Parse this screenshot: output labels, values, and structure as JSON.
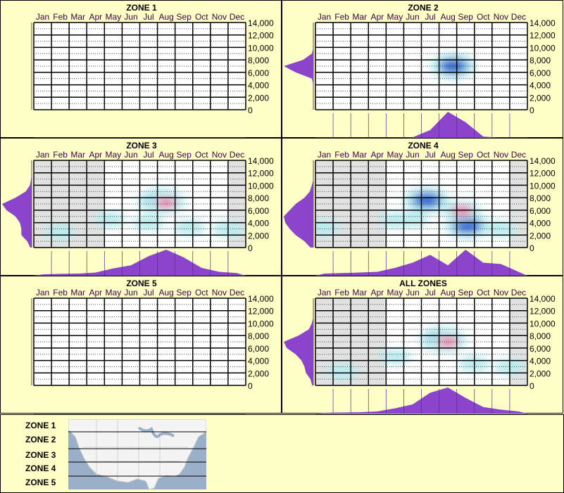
{
  "axis": {
    "months": [
      "Jan",
      "Feb",
      "Mar",
      "Apr",
      "May",
      "Jun",
      "Jul",
      "Aug",
      "Sep",
      "Oct",
      "Nov",
      "Dec"
    ],
    "y_ticks": [
      "14,000",
      "12,000",
      "10,000",
      "8,000",
      "6,000",
      "4,000",
      "2,000",
      "0"
    ],
    "ylim": [
      0,
      14000
    ]
  },
  "colors": {
    "background": "#ffffc8",
    "no_data": "#e2e2e2",
    "low": "#b8ecf0",
    "mid": "#0a5ad0",
    "high": "#ff2a8a",
    "marginal": "#8b44cc"
  },
  "chart_data": [
    {
      "type": "heatmap",
      "title": "ZONE 1",
      "no_data_months": [],
      "hotspots": [],
      "elev_density": [],
      "month_density": []
    },
    {
      "type": "heatmap",
      "title": "ZONE 2",
      "no_data_months": [],
      "hotspots": [
        {
          "month": 7.8,
          "elev": 7000,
          "level": "mid"
        },
        {
          "month": 7.5,
          "elev": 6500,
          "level": "low"
        }
      ],
      "elev_density": [
        0,
        0,
        0,
        0,
        0,
        0.05,
        0.6,
        1,
        0.35,
        0.05,
        0,
        0,
        0,
        0,
        0
      ],
      "month_density": [
        0,
        0,
        0,
        0,
        0,
        0.02,
        0.3,
        1,
        0.6,
        0.05,
        0,
        0
      ]
    },
    {
      "type": "heatmap",
      "title": "ZONE 3",
      "no_data_months": [
        "Jan",
        "Feb",
        "Mar",
        "Apr",
        "Dec"
      ],
      "hotspots": [
        {
          "month": 7.5,
          "elev": 7200,
          "level": "high"
        },
        {
          "month": 7.2,
          "elev": 7500,
          "level": "mid"
        },
        {
          "month": 4.3,
          "elev": 4500,
          "level": "low"
        },
        {
          "month": 8.8,
          "elev": 3200,
          "level": "low"
        },
        {
          "month": 11,
          "elev": 3000,
          "level": "low"
        },
        {
          "month": 1.5,
          "elev": 2500,
          "level": "low"
        },
        {
          "month": 6.5,
          "elev": 4000,
          "level": "low"
        }
      ],
      "elev_density": [
        0.05,
        0.15,
        0.35,
        0.35,
        0.4,
        0.55,
        0.85,
        1,
        0.55,
        0.2,
        0.06,
        0.02,
        0,
        0,
        0
      ],
      "month_density": [
        0.05,
        0.07,
        0.08,
        0.12,
        0.28,
        0.4,
        0.75,
        1,
        0.7,
        0.3,
        0.15,
        0.1
      ]
    },
    {
      "type": "heatmap",
      "title": "ZONE 4",
      "no_data_months": [
        "Jan",
        "Feb",
        "Mar",
        "Apr",
        "Dec"
      ],
      "hotspots": [
        {
          "month": 6.3,
          "elev": 7600,
          "level": "mid"
        },
        {
          "month": 8.3,
          "elev": 5900,
          "level": "high"
        },
        {
          "month": 8.6,
          "elev": 3500,
          "level": "mid"
        },
        {
          "month": 4.5,
          "elev": 4400,
          "level": "low"
        },
        {
          "month": 5.5,
          "elev": 4500,
          "level": "low"
        },
        {
          "month": 10.5,
          "elev": 3000,
          "level": "low"
        },
        {
          "month": 0.5,
          "elev": 3200,
          "level": "low"
        }
      ],
      "elev_density": [
        0.1,
        0.3,
        0.6,
        0.8,
        0.95,
        1,
        0.8,
        0.6,
        0.3,
        0.12,
        0.05,
        0,
        0,
        0,
        0
      ],
      "month_density": [
        0.08,
        0.1,
        0.12,
        0.15,
        0.3,
        0.5,
        0.8,
        0.4,
        1,
        0.5,
        0.45,
        0.15
      ]
    },
    {
      "type": "heatmap",
      "title": "ZONE 5",
      "no_data_months": [],
      "hotspots": [],
      "elev_density": [],
      "month_density": []
    },
    {
      "type": "heatmap",
      "title": "ALL ZONES",
      "no_data_months": [
        "Jan",
        "Feb",
        "Mar",
        "Apr",
        "Dec"
      ],
      "hotspots": [
        {
          "month": 7.5,
          "elev": 7000,
          "level": "high"
        },
        {
          "month": 7.2,
          "elev": 7400,
          "level": "mid"
        },
        {
          "month": 4.5,
          "elev": 4600,
          "level": "low"
        },
        {
          "month": 9,
          "elev": 3500,
          "level": "low"
        },
        {
          "month": 11,
          "elev": 3000,
          "level": "low"
        },
        {
          "month": 1.5,
          "elev": 2200,
          "level": "low"
        }
      ],
      "elev_density": [
        0.04,
        0.1,
        0.25,
        0.3,
        0.4,
        0.6,
        0.9,
        1,
        0.5,
        0.15,
        0.05,
        0,
        0,
        0,
        0
      ],
      "month_density": [
        0.03,
        0.04,
        0.05,
        0.08,
        0.2,
        0.35,
        0.8,
        1,
        0.6,
        0.25,
        0.15,
        0.08
      ]
    }
  ],
  "legend": {
    "zones": [
      "ZONE 1",
      "ZONE 2",
      "ZONE 3",
      "ZONE 4",
      "ZONE 5"
    ]
  }
}
